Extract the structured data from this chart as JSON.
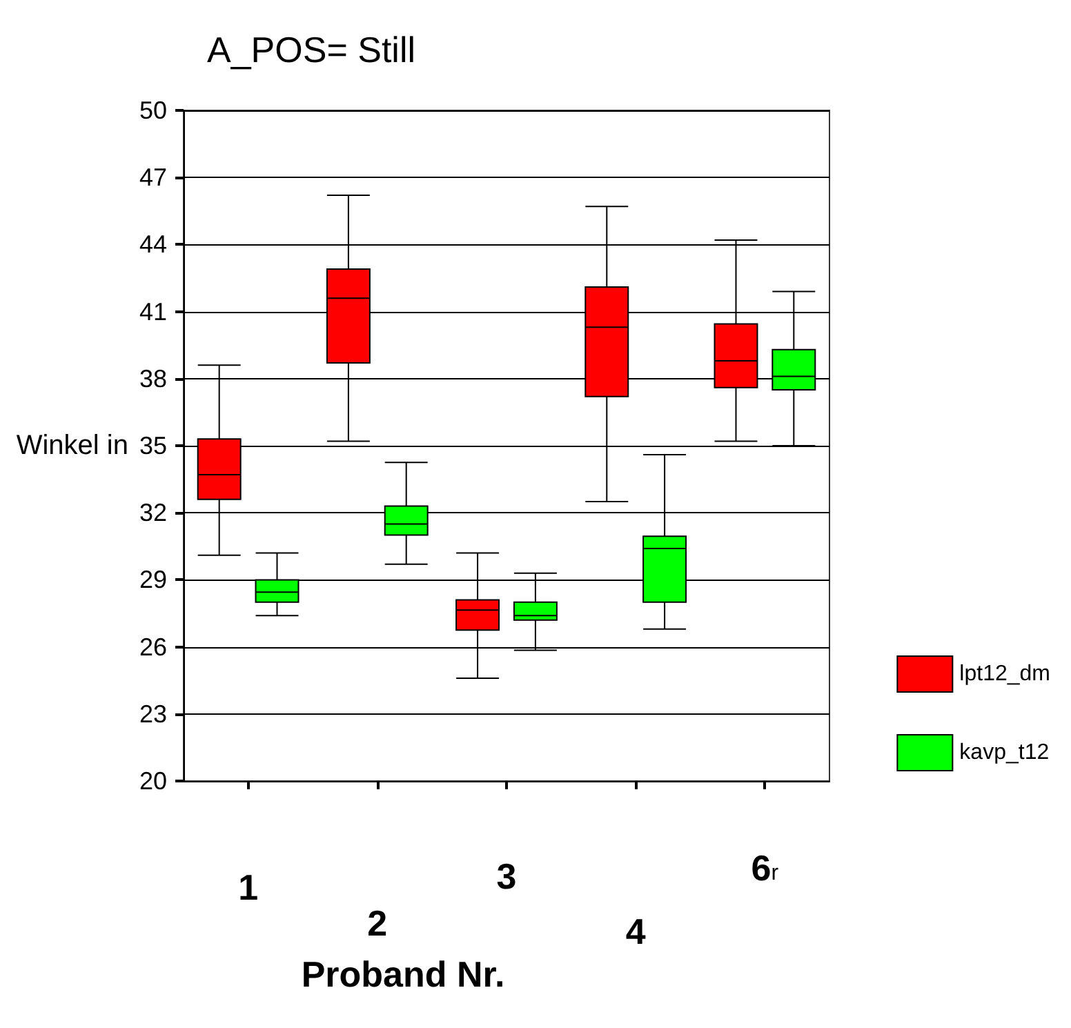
{
  "chart_data": {
    "type": "box",
    "title": "A_POS= Still",
    "xlabel": "Proband Nr.",
    "ylabel": "Winkel in",
    "categories": [
      "1",
      "2",
      "3",
      "4",
      "6$_{r}$"
    ],
    "ylim": [
      20,
      50
    ],
    "yticks": [
      20,
      23,
      26,
      29,
      32,
      35,
      38,
      41,
      44,
      47,
      50
    ],
    "grid": "y",
    "legend": "right",
    "series": [
      {
        "name": "lpt12_dm",
        "color": "#ff0000",
        "boxes": [
          {
            "low": 30.1,
            "q1": 32.6,
            "median": 33.7,
            "q3": 35.3,
            "high": 38.6
          },
          {
            "low": 35.2,
            "q1": 38.7,
            "median": 41.6,
            "q3": 42.9,
            "high": 46.2
          },
          {
            "low": 24.6,
            "q1": 26.75,
            "median": 27.65,
            "q3": 28.1,
            "high": 30.2
          },
          {
            "low": 32.5,
            "q1": 37.2,
            "median": 40.3,
            "q3": 42.1,
            "high": 45.7
          },
          {
            "low": 35.2,
            "q1": 37.6,
            "median": 38.8,
            "q3": 40.45,
            "high": 44.2
          }
        ]
      },
      {
        "name": "kavp_t12",
        "color": "#00ff00",
        "boxes": [
          {
            "low": 27.4,
            "q1": 28.0,
            "median": 28.45,
            "q3": 29.0,
            "high": 30.2
          },
          {
            "low": 29.7,
            "q1": 31.0,
            "median": 31.5,
            "q3": 32.3,
            "high": 34.25
          },
          {
            "low": 25.85,
            "q1": 27.2,
            "median": 27.4,
            "q3": 28.0,
            "high": 29.3
          },
          {
            "low": 26.8,
            "q1": 28.0,
            "median": 30.4,
            "q3": 30.95,
            "high": 34.6
          },
          {
            "low": 35.0,
            "q1": 37.5,
            "median": 38.1,
            "q3": 39.3,
            "high": 41.9
          }
        ]
      }
    ]
  }
}
